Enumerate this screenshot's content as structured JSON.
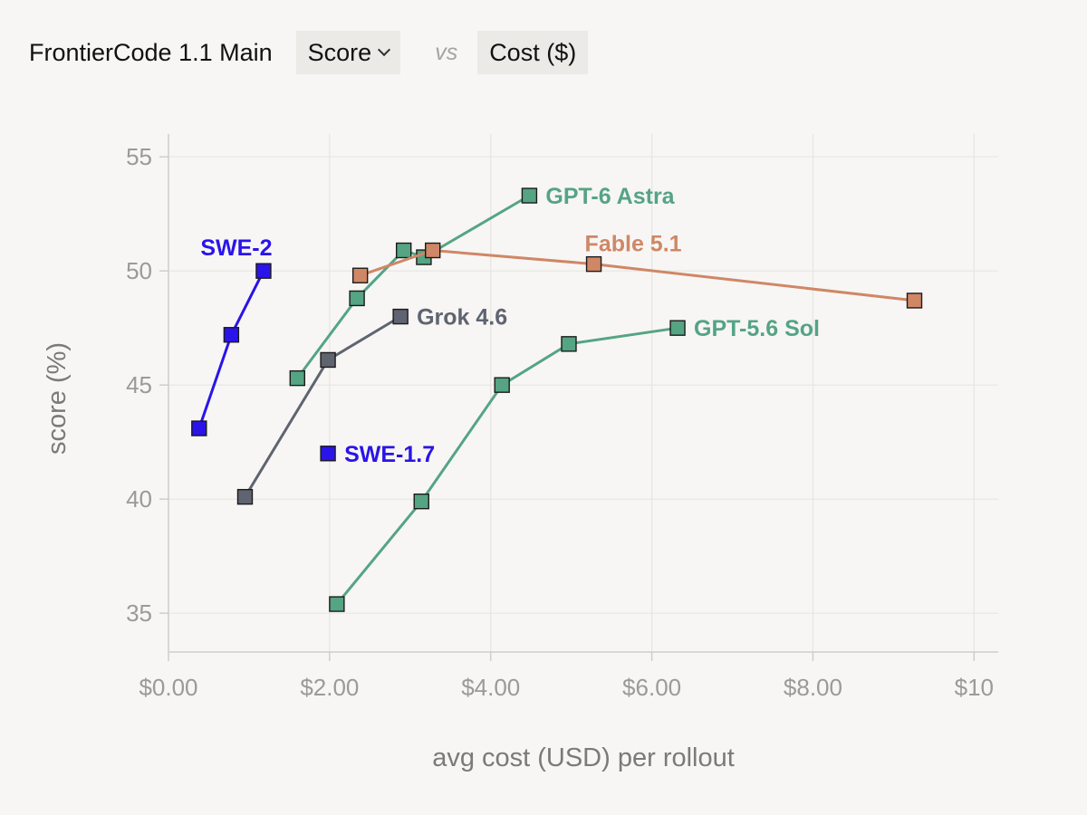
{
  "header": {
    "benchmark": "FrontierCode 1.1 Main",
    "metric_label": "Score",
    "vs_label": "vs",
    "compare_label": "Cost ($)"
  },
  "chart_data": {
    "type": "scatter",
    "xlabel": "avg cost (USD) per rollout",
    "ylabel": "score (%)",
    "xlim": [
      0,
      10.3
    ],
    "ylim": [
      33.3,
      56
    ],
    "x_ticks": [
      0,
      2,
      4,
      6,
      8,
      10
    ],
    "x_tick_labels": [
      "$0.00",
      "$2.00",
      "$4.00",
      "$6.00",
      "$8.00",
      "$10"
    ],
    "y_ticks": [
      35,
      40,
      45,
      50,
      55
    ],
    "y_tick_labels": [
      "35",
      "40",
      "45",
      "50",
      "55"
    ],
    "grid": true,
    "series": [
      {
        "name": "SWE-2",
        "color": "#2a14ea",
        "connected": true,
        "label_anchor": "end",
        "points": [
          [
            0.38,
            43.1
          ],
          [
            0.78,
            47.2
          ],
          [
            1.18,
            50.0
          ]
        ]
      },
      {
        "name": "SWE-1.7",
        "color": "#2a14ea",
        "connected": false,
        "label_anchor": "end",
        "points": [
          [
            1.98,
            42.0
          ]
        ]
      },
      {
        "name": "Grok 4.6",
        "color": "#5f6470",
        "connected": true,
        "label_anchor": "end",
        "points": [
          [
            0.95,
            40.1
          ],
          [
            1.98,
            46.1
          ],
          [
            2.88,
            48.0
          ]
        ]
      },
      {
        "name": "GPT-6 Astra",
        "color": "#55a484",
        "connected": true,
        "label_anchor": "end",
        "points": [
          [
            1.6,
            45.3
          ],
          [
            2.34,
            48.8
          ],
          [
            2.92,
            50.9
          ],
          [
            3.17,
            50.6
          ],
          [
            4.48,
            53.3
          ]
        ]
      },
      {
        "name": "Fable 5.1",
        "color": "#cf8766",
        "connected": true,
        "label_anchor": "last",
        "points": [
          [
            2.38,
            49.8
          ],
          [
            3.28,
            50.9
          ],
          [
            5.28,
            50.3
          ],
          [
            9.26,
            48.7
          ]
        ]
      },
      {
        "name": "GPT-5.6 Sol",
        "color": "#55a484",
        "connected": true,
        "label_anchor": "end",
        "points": [
          [
            2.09,
            35.4
          ],
          [
            3.14,
            39.9
          ],
          [
            4.14,
            45.0
          ],
          [
            4.97,
            46.8
          ],
          [
            6.32,
            47.5
          ]
        ]
      }
    ]
  }
}
